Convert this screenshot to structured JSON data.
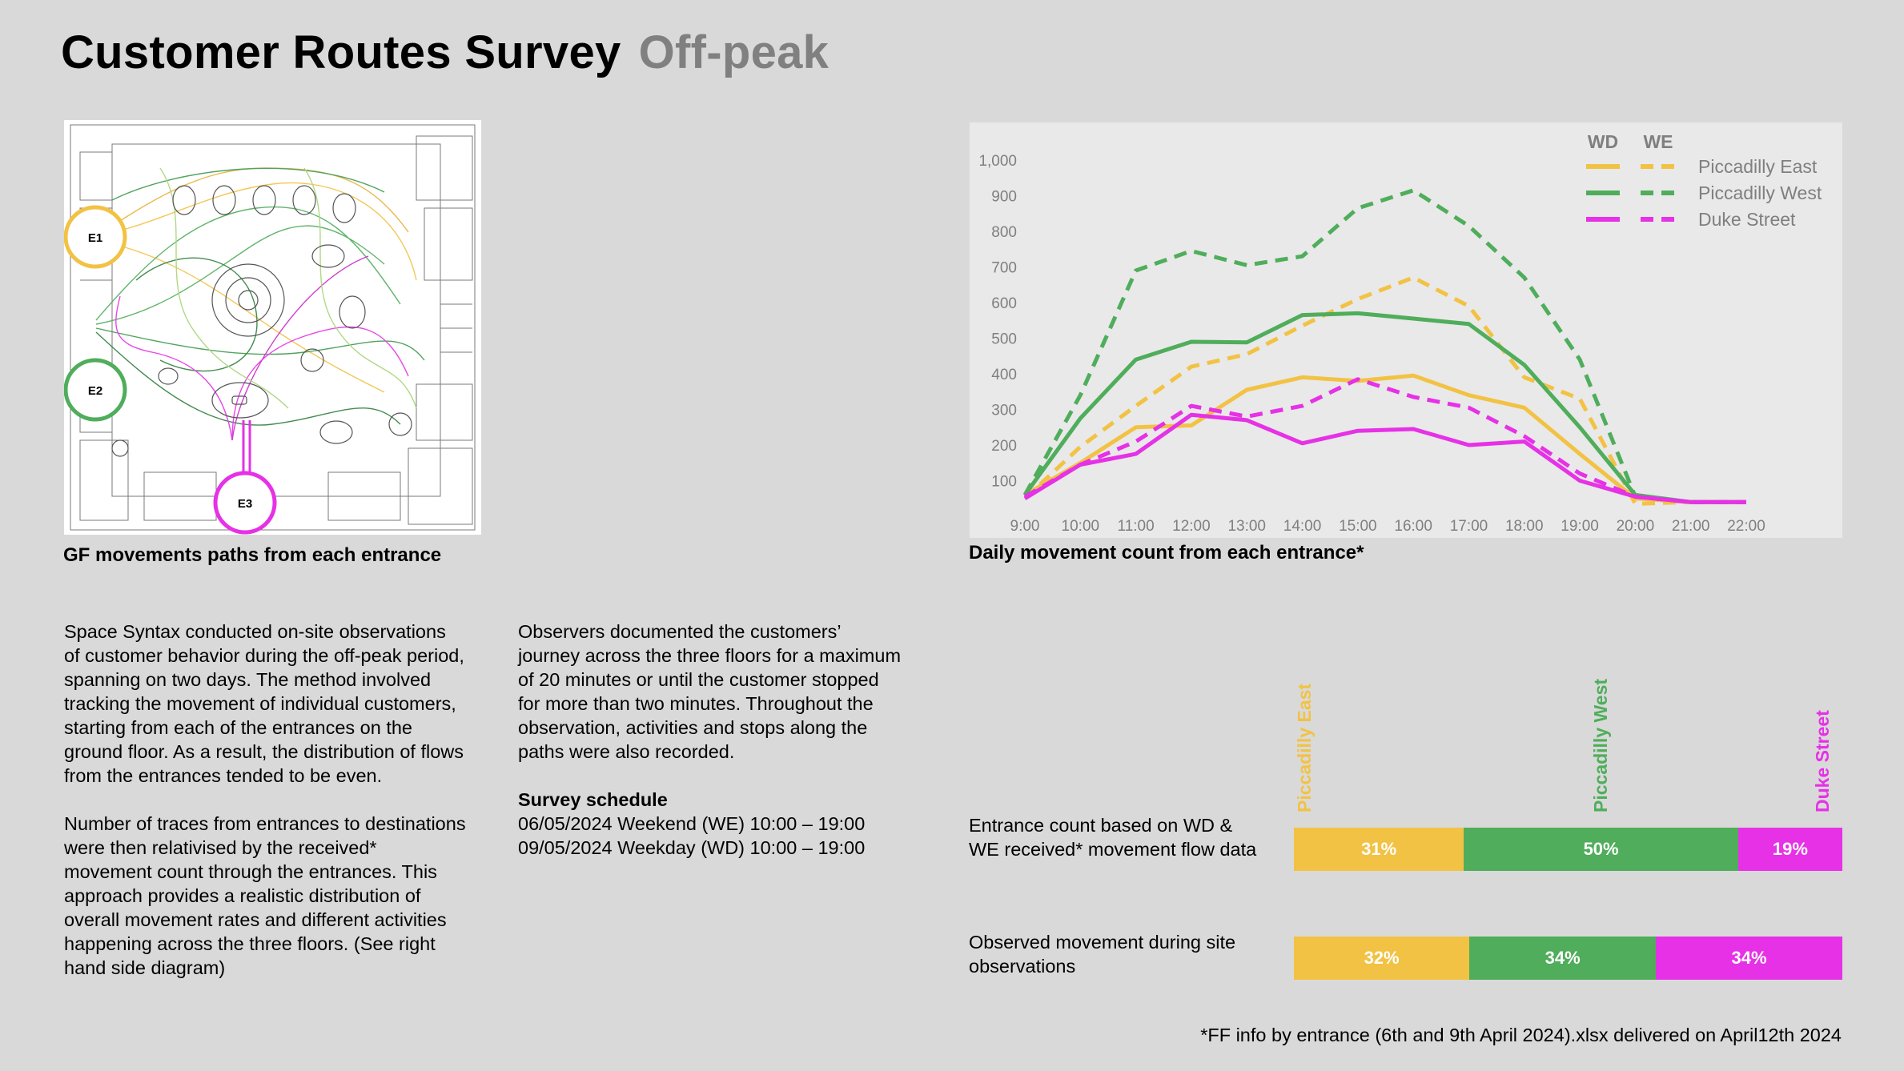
{
  "header": {
    "title": "Customer Routes Survey",
    "subtitle": "Off-peak"
  },
  "map": {
    "caption": "GF movements paths from each entrance",
    "entrances": [
      {
        "label": "E1",
        "color": "#f2c244"
      },
      {
        "label": "E2",
        "color": "#4fad5b"
      },
      {
        "label": "E3",
        "color": "#e631e6"
      }
    ]
  },
  "text": {
    "para1": "Space Syntax conducted on-site observations\nof customer behavior during the off-peak period,\nspanning on two days. The method involved\ntracking the movement of individual customers,\nstarting from each of the entrances on the\nground floor. As a result, the distribution of flows\nfrom the entrances tended to be even.",
    "para2": "Number of traces from entrances to destinations\nwere then relativised by the received*\nmovement count through the entrances. This\napproach provides a realistic distribution of\noverall movement rates and different activities\nhappening across the three floors. (See right\nhand side diagram)",
    "para3": "Observers documented the customers’\njourney across the three floors for a maximum\nof 20 minutes or until the customer stopped\nfor more than two minutes. Throughout the\nobservation, activities and stops along the\npaths were also recorded.",
    "schedule_title": "Survey schedule",
    "schedule_lines": "06/05/2024 Weekend (WE) 10:00 – 19:00\n09/05/2024 Weekday (WD) 10:00 – 19:00"
  },
  "chart_data": [
    {
      "type": "line",
      "title": "Daily movement count from each entrance*",
      "x": [
        "9:00",
        "10:00",
        "11:00",
        "12:00",
        "13:00",
        "14:00",
        "15:00",
        "16:00",
        "17:00",
        "18:00",
        "19:00",
        "20:00",
        "21:00",
        "22:00"
      ],
      "ylim": [
        0,
        1000
      ],
      "yticks": [
        "100",
        "200",
        "300",
        "400",
        "500",
        "600",
        "700",
        "800",
        "900",
        "1,000"
      ],
      "legend_headers": [
        "WD",
        "WE"
      ],
      "legend_position": "top-right",
      "series": [
        {
          "name": "Piccadilly East",
          "kind": "WD",
          "color": "#f2c244",
          "values": [
            60,
            150,
            250,
            255,
            355,
            390,
            380,
            395,
            340,
            305,
            175,
            50,
            40,
            40
          ]
        },
        {
          "name": "Piccadilly East",
          "kind": "WE",
          "color": "#f2c244",
          "values": [
            50,
            195,
            310,
            420,
            455,
            535,
            610,
            670,
            590,
            390,
            330,
            35,
            40,
            40
          ]
        },
        {
          "name": "Piccadilly West",
          "kind": "WD",
          "color": "#4fad5b",
          "values": [
            60,
            275,
            440,
            490,
            488,
            565,
            570,
            555,
            540,
            425,
            250,
            60,
            40,
            40
          ]
        },
        {
          "name": "Piccadilly West",
          "kind": "WE",
          "color": "#4fad5b",
          "values": [
            60,
            340,
            690,
            745,
            705,
            730,
            865,
            915,
            815,
            670,
            440,
            55,
            40,
            40
          ]
        },
        {
          "name": "Duke Street",
          "kind": "WD",
          "color": "#e631e6",
          "values": [
            50,
            145,
            175,
            285,
            270,
            205,
            240,
            245,
            200,
            210,
            100,
            55,
            40,
            40
          ]
        },
        {
          "name": "Duke Street",
          "kind": "WE",
          "color": "#e631e6",
          "values": [
            55,
            145,
            210,
            310,
            280,
            310,
            385,
            335,
            305,
            225,
            120,
            55,
            40,
            40
          ]
        }
      ]
    },
    {
      "type": "bar",
      "stacked": true,
      "categories": [
        "Piccadilly East",
        "Piccadilly West",
        "Duke Street"
      ],
      "colors": [
        "#f2c244",
        "#4fad5b",
        "#e631e6"
      ],
      "bars": [
        {
          "label": "Entrance count based on WD &\nWE received* movement flow data",
          "values": [
            31,
            50,
            19
          ],
          "labels": [
            "31%",
            "50%",
            "19%"
          ]
        },
        {
          "label": "Observed movement during site\nobservations",
          "values": [
            32,
            34,
            34
          ],
          "labels": [
            "32%",
            "34%",
            "34%"
          ]
        }
      ]
    }
  ],
  "footnote": "*FF info by entrance (6th and 9th April 2024).xlsx delivered on April12th 2024"
}
